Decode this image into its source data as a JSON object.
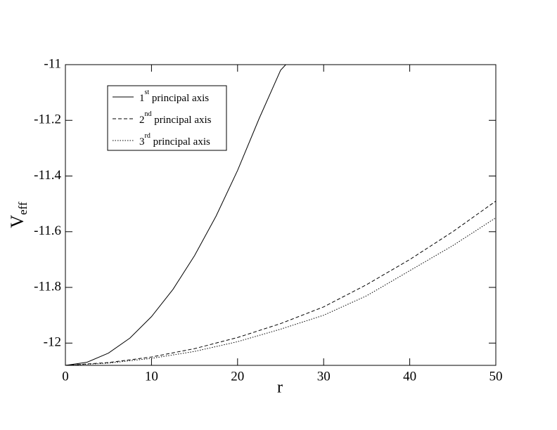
{
  "chart_data": {
    "type": "line",
    "x_label": "r",
    "y_label": "Veff",
    "xlim": [
      0,
      50
    ],
    "ylim": [
      -12.08,
      -11
    ],
    "xticks": [
      0,
      10,
      20,
      30,
      40,
      50
    ],
    "yticks": [
      -12,
      -11.8,
      -11.6,
      -11.4,
      -11.2,
      -11
    ],
    "legend": "upper left",
    "series": [
      {
        "name": "1st principal axis",
        "color": "#000000",
        "dash": "solid",
        "x": [
          0,
          2.5,
          5,
          7.5,
          10,
          12.5,
          15,
          17.5,
          20,
          22.5,
          25,
          25.6
        ],
        "values": [
          -12.08,
          -12.069,
          -12.036,
          -11.982,
          -11.905,
          -11.807,
          -11.686,
          -11.544,
          -11.38,
          -11.194,
          -11.02,
          -11.0
        ]
      },
      {
        "name": "2nd principal axis",
        "color": "#000000",
        "dash": "dashed",
        "x": [
          0,
          5,
          10,
          15,
          20,
          25,
          30,
          35,
          40,
          45,
          50
        ],
        "values": [
          -12.08,
          -12.07,
          -12.05,
          -12.02,
          -11.98,
          -11.93,
          -11.87,
          -11.79,
          -11.7,
          -11.6,
          -11.49
        ]
      },
      {
        "name": "3rd principal axis",
        "color": "#000000",
        "dash": "dotted",
        "x": [
          0,
          5,
          10,
          15,
          20,
          25,
          30,
          35,
          40,
          45,
          50
        ],
        "values": [
          -12.08,
          -12.072,
          -12.055,
          -12.03,
          -11.995,
          -11.95,
          -11.9,
          -11.83,
          -11.74,
          -11.65,
          -11.55
        ]
      }
    ]
  }
}
